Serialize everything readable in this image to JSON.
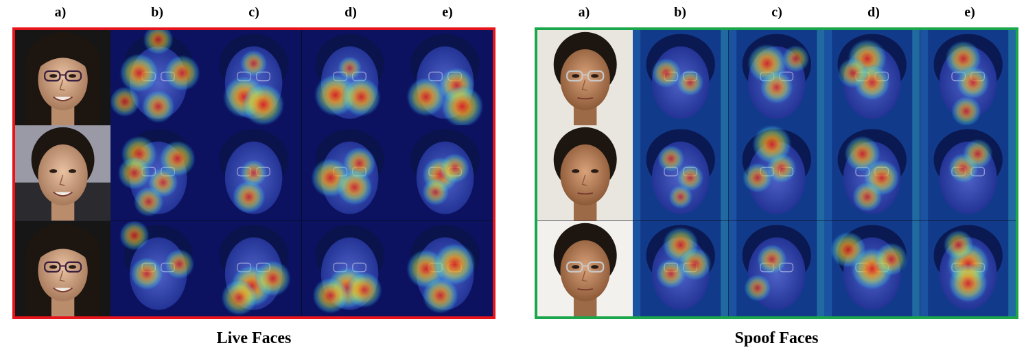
{
  "figure": {
    "panels": [
      {
        "id": "live",
        "caption": "Live Faces",
        "border_color": "#e8141b",
        "column_labels": [
          "a)",
          "b)",
          "c)",
          "d)",
          "e)"
        ]
      },
      {
        "id": "spoof",
        "caption": "Spoof Faces",
        "border_color": "#1aa64a",
        "column_labels": [
          "a)",
          "b)",
          "c)",
          "d)",
          "e)"
        ]
      }
    ]
  }
}
